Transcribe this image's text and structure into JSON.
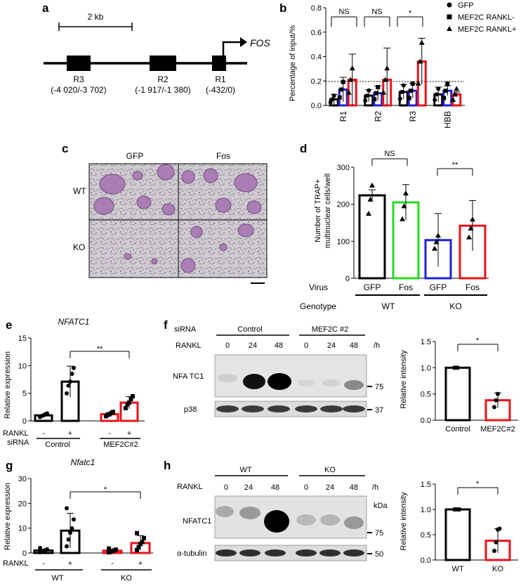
{
  "panel_letters": [
    "a",
    "b",
    "c",
    "d",
    "e",
    "f",
    "g",
    "h"
  ],
  "colors": {
    "black": "#000000",
    "blue": "#1f1fd6",
    "red": "#e8141a",
    "green": "#22dd22"
  },
  "a": {
    "scale": "2 kb",
    "gene": "FOS",
    "regions": [
      {
        "name": "R3",
        "coords": "(-4 020/-3 702)"
      },
      {
        "name": "R2",
        "coords": "(-1 917/-1 380)"
      },
      {
        "name": "R1",
        "coords": "(-432/0)"
      }
    ]
  },
  "b": {
    "ylabel": "Percentage of input/%",
    "legend": [
      "GFP",
      "MEF2C RANKL-",
      "MEF2C RANKL+"
    ],
    "sig": [
      "NS",
      "NS",
      "*"
    ]
  },
  "c": {
    "cols": [
      "GFP",
      "Fos"
    ],
    "rows": [
      "WT",
      "KO"
    ]
  },
  "d": {
    "ylabel1": "Number of TRAP+",
    "ylabel2": "multinuclear cells/well",
    "virus_label": "Virus",
    "genotype_label": "Genotype",
    "virus": [
      "GFP",
      "Fos",
      "GFP",
      "Fos"
    ],
    "genotype": [
      "WT",
      "KO"
    ],
    "sig": [
      "NS",
      "**"
    ]
  },
  "e": {
    "title": "NFATC1",
    "ylabel": "Relative expression",
    "sig": "**",
    "rankl_label": "RANKL",
    "sirna_label": "siRNA",
    "pm": [
      "-",
      "+",
      "-",
      "+"
    ],
    "groups": [
      "Control",
      "MEF2C#2"
    ]
  },
  "f": {
    "sirna_label": "siRNA",
    "rankl_label": "RANKL",
    "groups": [
      "Control",
      "MEF2C #2"
    ],
    "times": [
      "0",
      "24",
      "48",
      "0",
      "24",
      "48"
    ],
    "unit": "/h",
    "bands": [
      "NFA TC1",
      "p38"
    ],
    "mw": [
      "75",
      "37"
    ],
    "bar": {
      "ylabel": "Relative intensity",
      "categories": [
        "Control",
        "MEF2C#2"
      ],
      "sig": "*"
    }
  },
  "g": {
    "title": "Nfatc1",
    "ylabel": "Relative expression",
    "sig": "*",
    "rankl_label": "RANKL",
    "pm": [
      "-",
      "+",
      "-",
      "+"
    ],
    "groups": [
      "WT",
      "KO"
    ]
  },
  "h": {
    "groups": [
      "WT",
      "KO"
    ],
    "rankl_label": "RANKL",
    "times": [
      "0",
      "24",
      "48",
      "0",
      "24",
      "48"
    ],
    "unit": "/h",
    "kda": "kDa",
    "bands": [
      "NFATC1",
      "α-tubulin"
    ],
    "mw": [
      "75",
      "50"
    ],
    "bar": {
      "ylabel": "Relative intensity",
      "categories": [
        "WT",
        "KO"
      ],
      "sig": "*"
    }
  },
  "chart_data": [
    {
      "type": "bar",
      "panel": "b",
      "categories": [
        "R1",
        "R2",
        "R3",
        "HBB"
      ],
      "ylim": [
        0,
        0.8
      ],
      "yticks": [
        "0.0",
        "0.2",
        "0.4",
        "0.6",
        "0.8"
      ],
      "series": [
        {
          "name": "GFP",
          "values": [
            0.05,
            0.08,
            0.11,
            0.09
          ],
          "err": [
            0.04,
            0.05,
            0.06,
            0.06
          ]
        },
        {
          "name": "MEF2C RANKL-",
          "values": [
            0.13,
            0.1,
            0.12,
            0.12
          ],
          "err": [
            0.1,
            0.06,
            0.06,
            0.04
          ]
        },
        {
          "name": "MEF2C RANKL+",
          "values": [
            0.21,
            0.21,
            0.36,
            0.09
          ],
          "err": [
            0.21,
            0.26,
            0.19,
            0.02
          ]
        }
      ]
    },
    {
      "type": "bar",
      "panel": "d",
      "categories": [
        "GFP",
        "Fos",
        "GFP",
        "Fos"
      ],
      "ylim": [
        0,
        300
      ],
      "yticks": [
        "0",
        "100",
        "200",
        "300"
      ],
      "values": [
        224,
        205,
        103,
        142
      ],
      "err": [
        15,
        48,
        72,
        68
      ]
    },
    {
      "type": "bar",
      "panel": "e",
      "categories": [
        "-",
        "+",
        "-",
        "+"
      ],
      "ylim": [
        0,
        15
      ],
      "yticks": [
        "0",
        "5",
        "10",
        "15"
      ],
      "values": [
        1,
        7.1,
        1.2,
        3.3
      ],
      "err": [
        0.1,
        2.8,
        0.3,
        1.1
      ]
    },
    {
      "type": "bar",
      "panel": "f",
      "categories": [
        "Control",
        "MEF2C#2"
      ],
      "ylim": [
        0,
        1.5
      ],
      "yticks": [
        "0.0",
        "0.5",
        "1.0",
        "1.5"
      ],
      "values": [
        1.0,
        0.38
      ],
      "err": [
        0,
        0.14
      ]
    },
    {
      "type": "bar",
      "panel": "g",
      "categories": [
        "-",
        "+",
        "-",
        "+"
      ],
      "ylim": [
        0,
        30
      ],
      "yticks": [
        "0",
        "10",
        "20",
        "30"
      ],
      "values": [
        1,
        9,
        0.9,
        4
      ],
      "err": [
        0.3,
        7,
        0.3,
        3
      ]
    },
    {
      "type": "bar",
      "panel": "h",
      "categories": [
        "WT",
        "KO"
      ],
      "ylim": [
        0,
        1.5
      ],
      "yticks": [
        "0.0",
        "0.5",
        "1.0",
        "1.5"
      ],
      "values": [
        1.0,
        0.38
      ],
      "err": [
        0,
        0.24
      ]
    }
  ]
}
